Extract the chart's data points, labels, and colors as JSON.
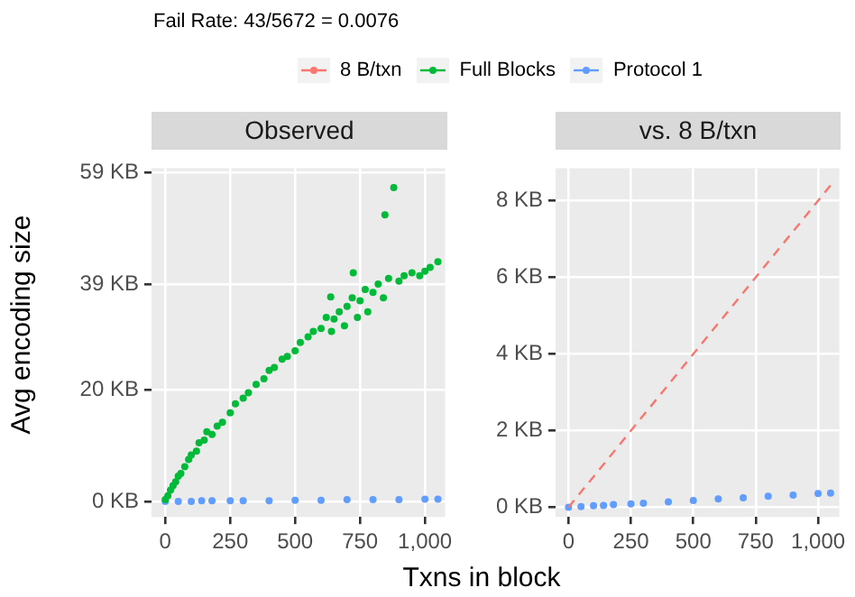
{
  "chart_data": [
    {
      "type": "scatter",
      "title": "Observed",
      "annotations": [
        "Fail Rate: 43/5672 = 0.0076"
      ],
      "xlabel": "Txns in block",
      "ylabel": "Avg encoding size",
      "legend": "top",
      "grid": true,
      "marker": "circle",
      "xlim": [
        -53,
        1078
      ],
      "xticks": [
        0,
        250,
        500,
        750,
        {
          "value": 1000,
          "label": "1,000"
        }
      ],
      "ylim": [
        -2.8,
        59.8
      ],
      "yticks": [
        {
          "value": 0,
          "label": "0 KB"
        },
        {
          "value": 20,
          "label": "20 KB"
        },
        {
          "value": 39,
          "label": "39 KB"
        },
        {
          "value": 59,
          "label": "59 KB"
        }
      ],
      "series": [
        {
          "name": "Full Blocks",
          "color": "#00ba38",
          "x": [
            0,
            10,
            20,
            30,
            40,
            50,
            60,
            75,
            90,
            100,
            120,
            130,
            150,
            160,
            180,
            200,
            220,
            250,
            270,
            300,
            320,
            350,
            380,
            400,
            420,
            450,
            470,
            500,
            520,
            550,
            570,
            600,
            620,
            637,
            640,
            650,
            670,
            690,
            700,
            720,
            724,
            740,
            750,
            770,
            780,
            800,
            820,
            840,
            846,
            860,
            880,
            900,
            920,
            950,
            980,
            1000,
            1020,
            1050
          ],
          "values": [
            0.3,
            1,
            2,
            2.8,
            3.5,
            4.5,
            5,
            6.2,
            7.5,
            8.3,
            9,
            10.5,
            11,
            12.5,
            12,
            13.5,
            14.2,
            15.9,
            17.5,
            18.5,
            19.5,
            21,
            22,
            23.5,
            24,
            25.5,
            26,
            27,
            28.5,
            29.5,
            30.5,
            31,
            33,
            36.7,
            30.5,
            32.7,
            34,
            31.5,
            35,
            36.5,
            41,
            33,
            36,
            38,
            34,
            37.5,
            39,
            36.5,
            51.4,
            40,
            56.3,
            39.5,
            40.5,
            41,
            40.5,
            41.3,
            42,
            43
          ]
        },
        {
          "name": "Protocol 1",
          "color": "#619cff",
          "x": [
            0,
            50,
            100,
            140,
            180,
            250,
            300,
            400,
            500,
            600,
            700,
            800,
            900,
            1000,
            1050
          ],
          "values": [
            0,
            0,
            0,
            0.1,
            0.1,
            0.1,
            0.1,
            0.1,
            0.2,
            0.2,
            0.3,
            0.3,
            0.3,
            0.4,
            0.4
          ]
        }
      ]
    },
    {
      "type": "scatter",
      "title": "vs. 8 B/txn",
      "legend": "top",
      "grid": true,
      "marker": "circle",
      "xlim": [
        -52,
        1085
      ],
      "xticks": [
        0,
        250,
        500,
        750,
        {
          "value": 1000,
          "label": "1,000"
        }
      ],
      "ylim": [
        -0.25,
        8.85
      ],
      "yticks": [
        {
          "value": 0,
          "label": "0 KB"
        },
        {
          "value": 2,
          "label": "2 KB"
        },
        {
          "value": 4,
          "label": "4 KB"
        },
        {
          "value": 6,
          "label": "6 KB"
        },
        {
          "value": 8,
          "label": "8 KB"
        }
      ],
      "series": [
        {
          "name": "8 B/txn",
          "type": "line",
          "marker": "none",
          "line_style": "dashed",
          "color": "#f8766d",
          "x": [
            0,
            1050
          ],
          "values": [
            0,
            8.4
          ]
        },
        {
          "name": "Protocol 1",
          "color": "#619cff",
          "x": [
            0,
            50,
            100,
            140,
            180,
            250,
            300,
            400,
            500,
            600,
            700,
            800,
            900,
            1000,
            1050
          ],
          "values": [
            0,
            0.02,
            0.04,
            0.05,
            0.07,
            0.09,
            0.11,
            0.14,
            0.18,
            0.22,
            0.25,
            0.29,
            0.32,
            0.36,
            0.37
          ]
        }
      ]
    }
  ]
}
